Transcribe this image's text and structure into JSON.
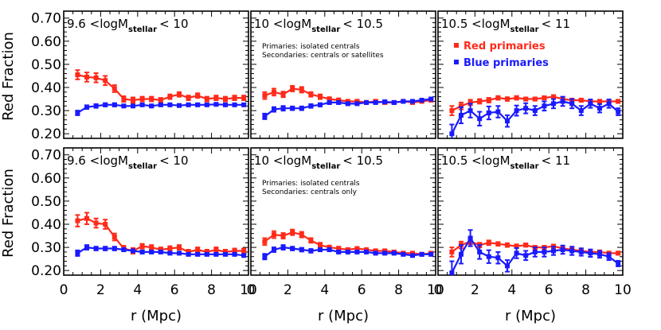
{
  "colors": {
    "red": "#ff2a1a",
    "blue": "#1a1aff",
    "axis": "#000000"
  },
  "axes": {
    "ylabel": "Red Fraction",
    "xlabel": "r (Mpc)",
    "x_ticks": [
      "0",
      "2",
      "4",
      "6",
      "8",
      "10"
    ],
    "y_ticks": [
      "0.20",
      "0.30",
      "0.40",
      "0.50",
      "0.60",
      "0.70"
    ],
    "xlim": [
      0,
      10
    ],
    "ylim": [
      0.18,
      0.73
    ]
  },
  "legend": {
    "red_label": "Red primaries",
    "blue_label": "Blue primaries"
  },
  "panel_titles": {
    "col1": {
      "pre": "9.6 <logM",
      "sub": "stellar",
      "post": "< 10"
    },
    "col2": {
      "pre": "10 <logM",
      "sub": "stellar",
      "post": "< 10.5"
    },
    "col3": {
      "pre": "10.5 <logM",
      "sub": "stellar",
      "post": "< 11"
    }
  },
  "notes": {
    "top": [
      "Primaries: isolated centrals",
      "Secondaries: centrals or satellites"
    ],
    "bottom": [
      "Primaries: isolated centrals",
      "Secondaries: centrals only"
    ]
  },
  "chart_data": [
    {
      "type": "line",
      "row": 0,
      "col": 0,
      "x": [
        0.75,
        1.25,
        1.75,
        2.25,
        2.75,
        3.25,
        3.75,
        4.25,
        4.75,
        5.25,
        5.75,
        6.25,
        6.75,
        7.25,
        7.75,
        8.25,
        8.75,
        9.25,
        9.75
      ],
      "series": [
        {
          "name": "Red primaries",
          "color": "red",
          "values": [
            0.455,
            0.445,
            0.442,
            0.43,
            0.395,
            0.35,
            0.345,
            0.35,
            0.35,
            0.345,
            0.36,
            0.37,
            0.355,
            0.365,
            0.35,
            0.355,
            0.35,
            0.355,
            0.355
          ],
          "err": [
            0.02,
            0.02,
            0.02,
            0.02,
            0.015,
            0.012,
            0.012,
            0.01,
            0.01,
            0.01,
            0.01,
            0.01,
            0.01,
            0.01,
            0.01,
            0.01,
            0.01,
            0.01,
            0.01
          ]
        },
        {
          "name": "Blue primaries",
          "color": "blue",
          "values": [
            0.29,
            0.315,
            0.32,
            0.325,
            0.325,
            0.32,
            0.32,
            0.325,
            0.32,
            0.325,
            0.325,
            0.322,
            0.325,
            0.325,
            0.325,
            0.327,
            0.325,
            0.325,
            0.325
          ],
          "err": [
            0.01,
            0.008,
            0.008,
            0.007,
            0.007,
            0.006,
            0.006,
            0.006,
            0.006,
            0.006,
            0.006,
            0.006,
            0.006,
            0.006,
            0.006,
            0.006,
            0.006,
            0.006,
            0.006
          ]
        }
      ]
    },
    {
      "type": "line",
      "row": 0,
      "col": 1,
      "x": [
        0.75,
        1.25,
        1.75,
        2.25,
        2.75,
        3.25,
        3.75,
        4.25,
        4.75,
        5.25,
        5.75,
        6.25,
        6.75,
        7.25,
        7.75,
        8.25,
        8.75,
        9.25,
        9.75
      ],
      "series": [
        {
          "name": "Red primaries",
          "color": "red",
          "values": [
            0.365,
            0.38,
            0.37,
            0.395,
            0.39,
            0.37,
            0.36,
            0.35,
            0.345,
            0.34,
            0.34,
            0.335,
            0.34,
            0.335,
            0.335,
            0.34,
            0.335,
            0.34,
            0.345
          ],
          "err": [
            0.015,
            0.015,
            0.012,
            0.012,
            0.012,
            0.01,
            0.01,
            0.008,
            0.008,
            0.007,
            0.007,
            0.007,
            0.007,
            0.006,
            0.006,
            0.006,
            0.006,
            0.006,
            0.006
          ]
        },
        {
          "name": "Blue primaries",
          "color": "blue",
          "values": [
            0.275,
            0.305,
            0.31,
            0.31,
            0.31,
            0.32,
            0.325,
            0.335,
            0.335,
            0.33,
            0.33,
            0.335,
            0.335,
            0.338,
            0.335,
            0.34,
            0.34,
            0.345,
            0.35
          ],
          "err": [
            0.012,
            0.01,
            0.01,
            0.008,
            0.008,
            0.008,
            0.007,
            0.007,
            0.006,
            0.006,
            0.006,
            0.006,
            0.006,
            0.006,
            0.006,
            0.006,
            0.006,
            0.006,
            0.006
          ]
        }
      ]
    },
    {
      "type": "line",
      "row": 0,
      "col": 2,
      "x": [
        0.75,
        1.25,
        1.75,
        2.25,
        2.75,
        3.25,
        3.75,
        4.25,
        4.75,
        5.25,
        5.75,
        6.25,
        6.75,
        7.25,
        7.75,
        8.25,
        8.75,
        9.25,
        9.75
      ],
      "series": [
        {
          "name": "Red primaries",
          "color": "red",
          "values": [
            0.3,
            0.32,
            0.335,
            0.34,
            0.345,
            0.355,
            0.35,
            0.355,
            0.35,
            0.35,
            0.355,
            0.36,
            0.35,
            0.345,
            0.345,
            0.34,
            0.34,
            0.34,
            0.34
          ],
          "err": [
            0.02,
            0.015,
            0.012,
            0.01,
            0.01,
            0.008,
            0.008,
            0.008,
            0.007,
            0.007,
            0.007,
            0.007,
            0.007,
            0.007,
            0.007,
            0.007,
            0.007,
            0.007,
            0.007
          ]
        },
        {
          "name": "Blue primaries",
          "color": "blue",
          "values": [
            0.2,
            0.28,
            0.3,
            0.265,
            0.29,
            0.295,
            0.255,
            0.3,
            0.31,
            0.3,
            0.32,
            0.33,
            0.34,
            0.33,
            0.3,
            0.33,
            0.31,
            0.33,
            0.295
          ],
          "err": [
            0.04,
            0.035,
            0.03,
            0.03,
            0.028,
            0.025,
            0.025,
            0.022,
            0.022,
            0.02,
            0.02,
            0.02,
            0.02,
            0.02,
            0.02,
            0.018,
            0.018,
            0.018,
            0.015
          ]
        }
      ]
    },
    {
      "type": "line",
      "row": 1,
      "col": 0,
      "x": [
        0.75,
        1.25,
        1.75,
        2.25,
        2.75,
        3.25,
        3.75,
        4.25,
        4.75,
        5.25,
        5.75,
        6.25,
        6.75,
        7.25,
        7.75,
        8.25,
        8.75,
        9.25,
        9.75
      ],
      "series": [
        {
          "name": "Red primaries",
          "color": "red",
          "values": [
            0.415,
            0.425,
            0.405,
            0.4,
            0.345,
            0.295,
            0.285,
            0.305,
            0.3,
            0.29,
            0.295,
            0.3,
            0.28,
            0.29,
            0.28,
            0.29,
            0.28,
            0.285,
            0.285
          ],
          "err": [
            0.025,
            0.025,
            0.02,
            0.02,
            0.015,
            0.012,
            0.012,
            0.01,
            0.01,
            0.01,
            0.01,
            0.01,
            0.01,
            0.01,
            0.01,
            0.01,
            0.01,
            0.01,
            0.01
          ]
        },
        {
          "name": "Blue primaries",
          "color": "blue",
          "values": [
            0.275,
            0.3,
            0.295,
            0.295,
            0.295,
            0.29,
            0.285,
            0.28,
            0.28,
            0.28,
            0.275,
            0.275,
            0.27,
            0.27,
            0.27,
            0.27,
            0.27,
            0.27,
            0.265
          ],
          "err": [
            0.012,
            0.01,
            0.008,
            0.008,
            0.008,
            0.007,
            0.007,
            0.007,
            0.006,
            0.006,
            0.006,
            0.006,
            0.006,
            0.006,
            0.006,
            0.006,
            0.006,
            0.006,
            0.006
          ]
        }
      ]
    },
    {
      "type": "line",
      "row": 1,
      "col": 1,
      "x": [
        0.75,
        1.25,
        1.75,
        2.25,
        2.75,
        3.25,
        3.75,
        4.25,
        4.75,
        5.25,
        5.75,
        6.25,
        6.75,
        7.25,
        7.75,
        8.25,
        8.75,
        9.25,
        9.75
      ],
      "series": [
        {
          "name": "Red primaries",
          "color": "red",
          "values": [
            0.325,
            0.355,
            0.35,
            0.365,
            0.355,
            0.33,
            0.31,
            0.3,
            0.295,
            0.29,
            0.295,
            0.29,
            0.285,
            0.285,
            0.28,
            0.275,
            0.275,
            0.27,
            0.275
          ],
          "err": [
            0.015,
            0.015,
            0.012,
            0.012,
            0.012,
            0.01,
            0.01,
            0.008,
            0.008,
            0.007,
            0.007,
            0.007,
            0.007,
            0.006,
            0.006,
            0.006,
            0.006,
            0.006,
            0.006
          ]
        },
        {
          "name": "Blue primaries",
          "color": "blue",
          "values": [
            0.26,
            0.29,
            0.3,
            0.295,
            0.29,
            0.285,
            0.29,
            0.29,
            0.28,
            0.28,
            0.28,
            0.28,
            0.275,
            0.275,
            0.275,
            0.27,
            0.265,
            0.27,
            0.27
          ],
          "err": [
            0.012,
            0.01,
            0.01,
            0.008,
            0.008,
            0.008,
            0.007,
            0.007,
            0.006,
            0.006,
            0.006,
            0.006,
            0.006,
            0.006,
            0.006,
            0.006,
            0.006,
            0.006,
            0.006
          ]
        }
      ]
    },
    {
      "type": "line",
      "row": 1,
      "col": 2,
      "x": [
        0.75,
        1.25,
        1.75,
        2.25,
        2.75,
        3.25,
        3.75,
        4.25,
        4.75,
        5.25,
        5.75,
        6.25,
        6.75,
        7.25,
        7.75,
        8.25,
        8.75,
        9.25,
        9.75
      ],
      "series": [
        {
          "name": "Red primaries",
          "color": "red",
          "values": [
            0.28,
            0.31,
            0.325,
            0.31,
            0.32,
            0.315,
            0.31,
            0.305,
            0.31,
            0.3,
            0.3,
            0.305,
            0.295,
            0.29,
            0.285,
            0.28,
            0.28,
            0.275,
            0.275
          ],
          "err": [
            0.02,
            0.015,
            0.012,
            0.01,
            0.01,
            0.008,
            0.008,
            0.008,
            0.007,
            0.007,
            0.007,
            0.007,
            0.007,
            0.007,
            0.007,
            0.007,
            0.007,
            0.007,
            0.007
          ]
        },
        {
          "name": "Blue primaries",
          "color": "blue",
          "values": [
            0.19,
            0.27,
            0.34,
            0.28,
            0.26,
            0.255,
            0.22,
            0.275,
            0.265,
            0.28,
            0.28,
            0.285,
            0.29,
            0.285,
            0.28,
            0.275,
            0.27,
            0.26,
            0.23
          ],
          "err": [
            0.05,
            0.04,
            0.035,
            0.03,
            0.028,
            0.025,
            0.025,
            0.022,
            0.02,
            0.02,
            0.02,
            0.018,
            0.018,
            0.018,
            0.016,
            0.016,
            0.015,
            0.015,
            0.012
          ]
        }
      ]
    }
  ]
}
